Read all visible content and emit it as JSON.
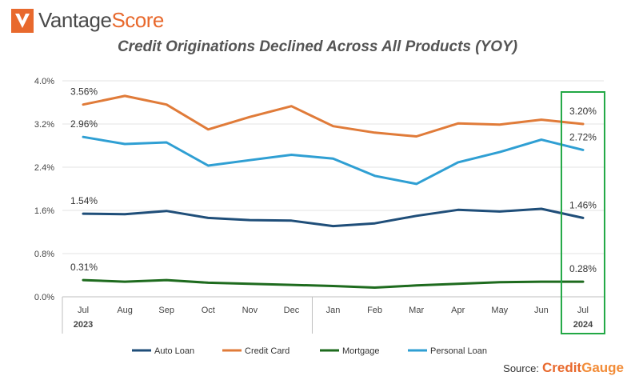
{
  "logo": {
    "brand_part1": "Vantage",
    "brand_part2": "Score"
  },
  "chart_data": {
    "type": "line",
    "title": "Credit Originations Declined Across All Products (YOY)",
    "categories": [
      "Jul",
      "Aug",
      "Sep",
      "Oct",
      "Nov",
      "Dec",
      "Jan",
      "Feb",
      "Mar",
      "Apr",
      "May",
      "Jun",
      "Jul"
    ],
    "year_labels": [
      {
        "label": "2023",
        "index": 0
      },
      {
        "label": "2024",
        "index": 12
      }
    ],
    "ylim": [
      0,
      4.0
    ],
    "yticks": [
      "0.0%",
      "0.8%",
      "1.6%",
      "2.4%",
      "3.2%",
      "4.0%"
    ],
    "ytick_values": [
      0,
      0.8,
      1.6,
      2.4,
      3.2,
      4.0
    ],
    "grid": true,
    "legend_position": "bottom",
    "series": [
      {
        "name": "Auto Loan",
        "color": "#1f4e79",
        "values": [
          1.54,
          1.53,
          1.59,
          1.46,
          1.42,
          1.41,
          1.31,
          1.36,
          1.5,
          1.61,
          1.58,
          1.63,
          1.46
        ],
        "start_label": "1.54%",
        "end_label": "1.46%"
      },
      {
        "name": "Credit Card",
        "color": "#e07b39",
        "values": [
          3.56,
          3.72,
          3.56,
          3.1,
          3.33,
          3.53,
          3.16,
          3.04,
          2.97,
          3.21,
          3.19,
          3.28,
          3.2
        ],
        "start_label": "3.56%",
        "end_label": "3.20%"
      },
      {
        "name": "Mortgage",
        "color": "#1e6b1e",
        "values": [
          0.31,
          0.28,
          0.31,
          0.26,
          0.24,
          0.22,
          0.2,
          0.17,
          0.21,
          0.24,
          0.27,
          0.28,
          0.28
        ],
        "start_label": "0.31%",
        "end_label": "0.28%"
      },
      {
        "name": "Personal Loan",
        "color": "#2f9fd3",
        "values": [
          2.96,
          2.83,
          2.86,
          2.43,
          2.53,
          2.63,
          2.56,
          2.24,
          2.09,
          2.49,
          2.68,
          2.91,
          2.72
        ],
        "start_label": "2.96%",
        "end_label": "2.72%"
      }
    ],
    "highlight": {
      "index": 12,
      "color": "#22a845"
    }
  },
  "source": {
    "label": "Source:",
    "brand_part1": "Credit",
    "brand_part2": "Gauge"
  }
}
